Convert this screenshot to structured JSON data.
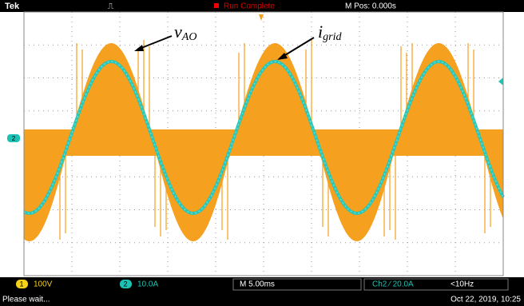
{
  "header": {
    "brand": "Tek",
    "status": "Run Complete",
    "position": "M Pos: 0.000s"
  },
  "annotations": [
    {
      "main": "v",
      "sub": "AO"
    },
    {
      "main": "i",
      "sub": "grid"
    }
  ],
  "markers": {
    "channel2": "2"
  },
  "footer": {
    "ch1_num": "1",
    "ch1_scale": "100V",
    "ch2_num": "2",
    "ch2_scale": "10.0A",
    "timebase": "M 5.00ms",
    "trigger": "Ch2 ⁄ 20.0A",
    "freq": "<10Hz",
    "message": "Please wait...",
    "datetime": "Oct 22, 2019, 10:25"
  }
}
